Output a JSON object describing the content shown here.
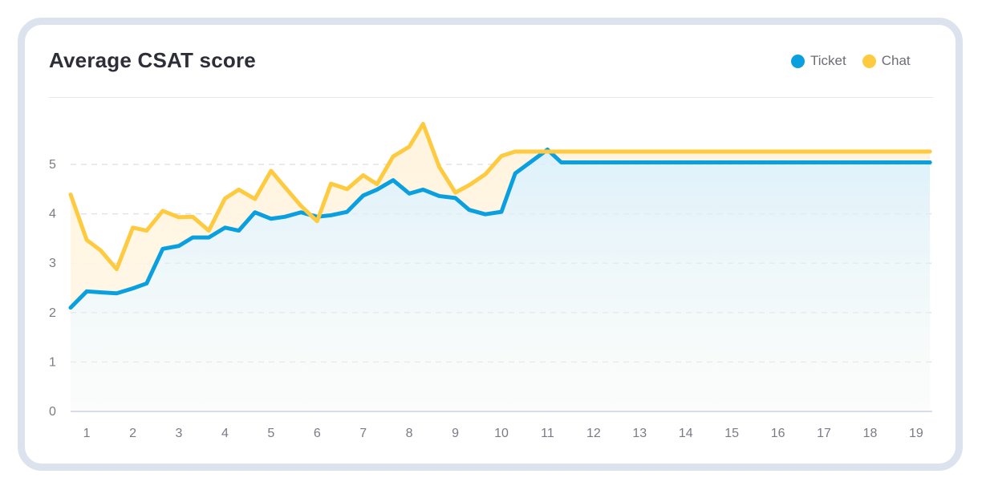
{
  "card": {
    "title": "Average CSAT score"
  },
  "legend": [
    {
      "label": "Ticket",
      "color": "#0aa0e0"
    },
    {
      "label": "Chat",
      "color": "#fdca40"
    }
  ],
  "chart_data": {
    "type": "line",
    "title": "Average CSAT score",
    "xlabel": "",
    "ylabel": "",
    "x_ticks": [
      "1",
      "2",
      "3",
      "4",
      "5",
      "6",
      "7",
      "8",
      "9",
      "10",
      "11",
      "12",
      "13",
      "14",
      "15",
      "16",
      "17",
      "18",
      "19"
    ],
    "y_ticks": [
      "0",
      "1",
      "2",
      "3",
      "4",
      "5"
    ],
    "ylim": [
      0,
      5
    ],
    "xlim": [
      0.65,
      19.35
    ],
    "x": [
      0.65,
      1.0,
      1.3,
      1.65,
      2.0,
      2.3,
      2.65,
      3.0,
      3.3,
      3.65,
      4.0,
      4.3,
      4.65,
      5.0,
      5.3,
      5.65,
      6.0,
      6.3,
      6.65,
      7.0,
      7.3,
      7.65,
      8.0,
      8.3,
      8.65,
      9.0,
      9.3,
      9.65,
      10.0,
      10.3,
      10.65,
      11.0,
      11.3,
      11.65,
      12.0,
      12.3,
      12.65,
      13.0,
      13.3,
      13.65,
      14.0,
      14.3,
      14.65,
      15.0,
      15.3,
      15.65,
      16.0,
      16.3,
      16.65,
      17.0,
      17.3,
      17.65,
      18.0,
      18.3,
      18.65,
      19.0,
      19.3
    ],
    "series": [
      {
        "name": "Ticket",
        "color": "#0aa0e0",
        "values": [
          2.1,
          2.43,
          2.41,
          2.39,
          2.49,
          2.59,
          3.29,
          3.35,
          3.52,
          3.52,
          3.72,
          3.66,
          4.03,
          3.9,
          3.94,
          4.03,
          3.94,
          3.97,
          4.04,
          4.37,
          4.49,
          4.68,
          4.41,
          4.49,
          4.36,
          4.32,
          4.08,
          3.99,
          4.04,
          4.82,
          5.06,
          5.3,
          5.04,
          5.04,
          5.04,
          5.04,
          5.04,
          5.04,
          5.04,
          5.04,
          5.04,
          5.04,
          5.04,
          5.04,
          5.04,
          5.04,
          5.04,
          5.04,
          5.04,
          5.04,
          5.04,
          5.04,
          5.04,
          5.04,
          5.04,
          5.04,
          5.04
        ]
      },
      {
        "name": "Chat",
        "color": "#fdca40",
        "values": [
          4.39,
          3.47,
          3.26,
          2.88,
          3.72,
          3.66,
          4.06,
          3.93,
          3.94,
          3.66,
          4.31,
          4.49,
          4.3,
          4.87,
          4.54,
          4.16,
          3.85,
          4.61,
          4.5,
          4.78,
          4.6,
          5.16,
          5.36,
          5.82,
          4.95,
          4.43,
          4.58,
          4.8,
          5.17,
          5.26,
          5.26,
          5.26,
          5.26,
          5.26,
          5.26,
          5.26,
          5.26,
          5.26,
          5.26,
          5.26,
          5.26,
          5.26,
          5.26,
          5.26,
          5.26,
          5.26,
          5.26,
          5.26,
          5.26,
          5.26,
          5.26,
          5.26,
          5.26,
          5.26,
          5.26,
          5.26,
          5.26
        ]
      }
    ],
    "grid": true,
    "legend_position": "top-right"
  }
}
